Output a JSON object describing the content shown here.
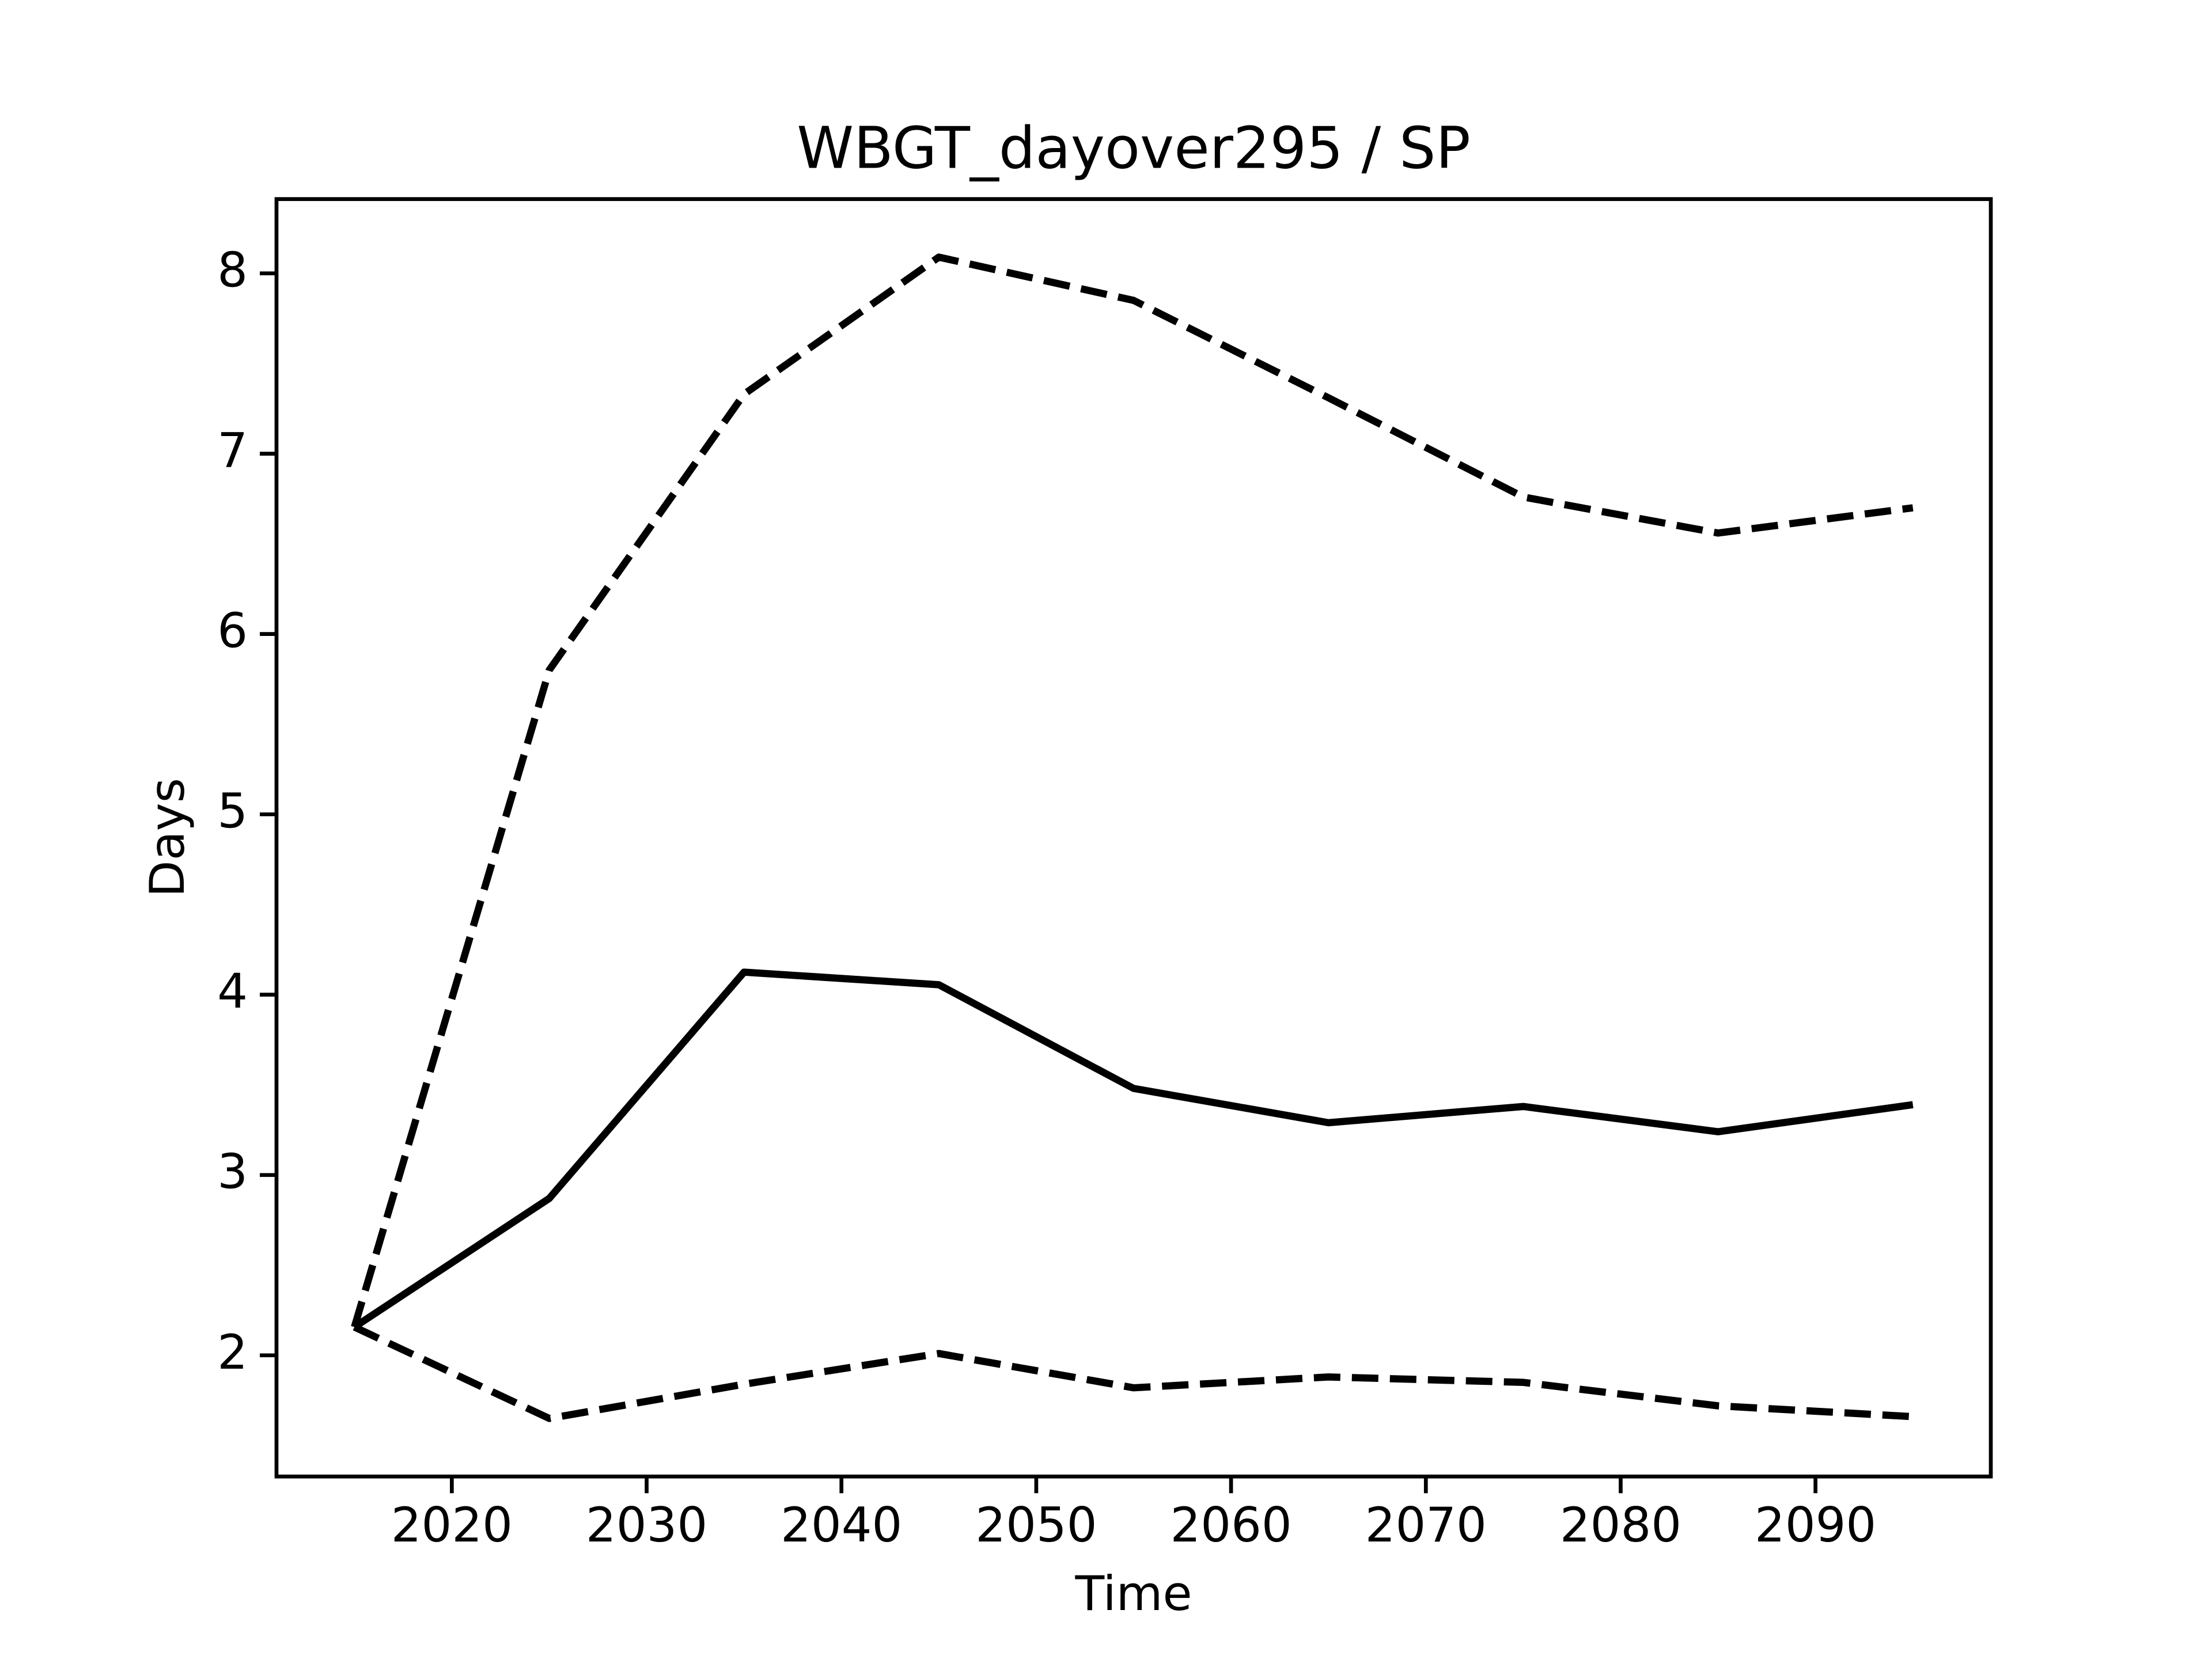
{
  "chart_data": {
    "type": "line",
    "title": "WBGT_dayover295 / SP",
    "x_label": "Time",
    "y_label": "Days",
    "x": [
      2015,
      2025,
      2035,
      2045,
      2055,
      2065,
      2075,
      2085,
      2095
    ],
    "series": [
      {
        "color": "#000000",
        "linestyle": "solid",
        "values": [
          2.157,
          2.87,
          4.125,
          4.055,
          3.48,
          3.29,
          3.38,
          3.24,
          3.39
        ]
      },
      {
        "color": "#000000",
        "linestyle": "dashed",
        "values": [
          2.157,
          5.8,
          7.33,
          8.09,
          7.85,
          7.31,
          6.76,
          6.56,
          6.7
        ]
      },
      {
        "color": "#000000",
        "linestyle": "dashed",
        "values": [
          2.157,
          1.65,
          1.84,
          2.01,
          1.82,
          1.88,
          1.85,
          1.72,
          1.66
        ]
      }
    ],
    "xlim": [
      2011,
      2099
    ],
    "xticks": [
      2020,
      2030,
      2040,
      2050,
      2060,
      2070,
      2080,
      2090
    ],
    "ylim": [
      1.328,
      8.412
    ],
    "yticks": [
      2,
      3,
      4,
      5,
      6,
      7,
      8
    ],
    "grid": false
  }
}
